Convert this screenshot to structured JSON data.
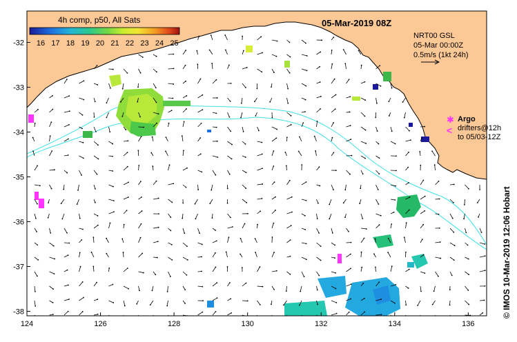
{
  "map": {
    "title": "05-Mar-2019 08Z",
    "colorbar_title": "4h comp, p50, All Sats",
    "colorbar_ticks": [
      "16",
      "17",
      "18",
      "19",
      "20",
      "21",
      "22",
      "23",
      "24",
      "25"
    ],
    "current_box": [
      "NRT00 GSL",
      "05-Mar 00:00Z",
      "0.5m/s (1kt 24h)"
    ],
    "argo_legend": [
      "Argo",
      "drifters@12h",
      "to 05/03-12Z"
    ],
    "credit": "© IMOS 10-Mar-2019 12:06 Hobart",
    "x_ticks": [
      "124",
      "126",
      "128",
      "130",
      "132",
      "134",
      "136"
    ],
    "y_ticks": [
      "-32",
      "-33",
      "-34",
      "-35",
      "-36",
      "-37",
      "-38"
    ],
    "lon_range": [
      124,
      136.5
    ],
    "lat_range": [
      -38.1,
      -31.3
    ]
  },
  "colors": {
    "land": "#fcc896",
    "coast": "#000000",
    "contour": "#3fe0e8",
    "argo": "#ff33ff",
    "drifter": "#ff33ff",
    "arrow": "#000000"
  },
  "icons": {
    "argo": "asterisk-icon",
    "drifter": "chevron-left-icon"
  }
}
